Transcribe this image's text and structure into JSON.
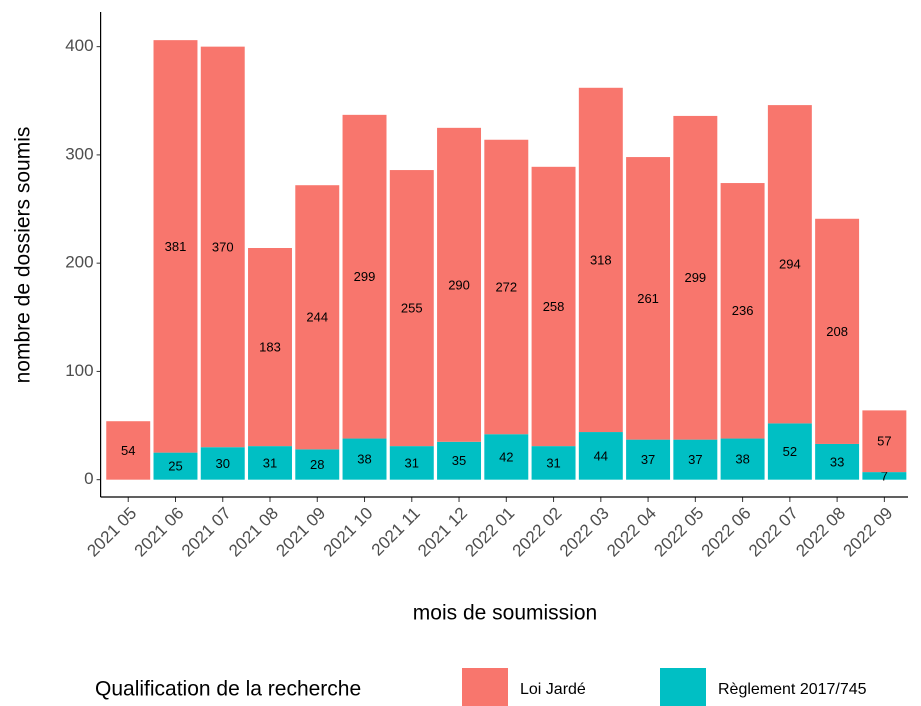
{
  "chart_data": {
    "type": "stacked_bar",
    "x_label": "mois de soumission",
    "y_label": "nombre de dossiers soumis",
    "legend_title": "Qualification de la recherche",
    "legend": "bottom",
    "categories": [
      "2021 05",
      "2021 06",
      "2021 07",
      "2021 08",
      "2021 09",
      "2021 10",
      "2021 11",
      "2021 12",
      "2022 01",
      "2022 02",
      "2022 03",
      "2022 04",
      "2022 05",
      "2022 06",
      "2022 07",
      "2022 08",
      "2022 09"
    ],
    "series": [
      {
        "name": "Loi Jardé",
        "color": "#f8766d",
        "values": [
          54,
          381,
          370,
          183,
          244,
          299,
          255,
          290,
          272,
          258,
          318,
          261,
          299,
          236,
          294,
          208,
          57
        ]
      },
      {
        "name": "Règlement 2017/745",
        "color": "#00bfc4",
        "values": [
          null,
          25,
          30,
          31,
          28,
          38,
          31,
          35,
          42,
          31,
          44,
          37,
          37,
          38,
          52,
          33,
          7
        ]
      }
    ],
    "ylim": [
      -16,
      432
    ],
    "yticks": [
      0,
      100,
      200,
      300,
      400
    ]
  }
}
